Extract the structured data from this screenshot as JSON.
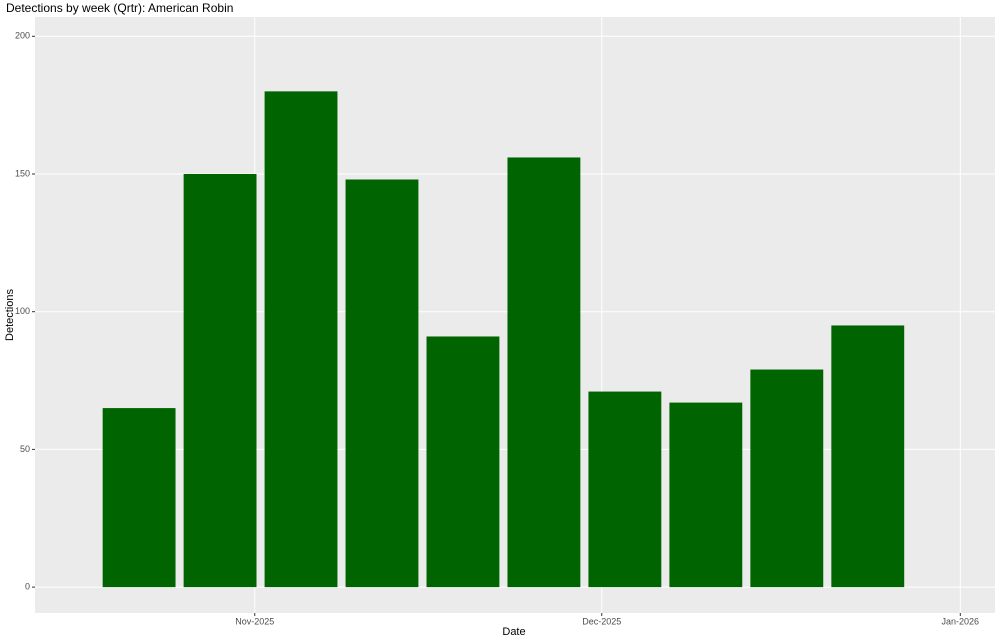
{
  "chart_data": {
    "type": "bar",
    "title": "Detections by week (Qrtr): American Robin",
    "x_label": "Date",
    "y_label": "Detections",
    "x": [
      -10,
      -3,
      4,
      11,
      18,
      25,
      32,
      39,
      46,
      53
    ],
    "values": [
      65,
      150,
      180,
      148,
      91,
      156,
      71,
      67,
      79,
      95
    ],
    "color": "#006400",
    "xlim": [
      -19,
      64
    ],
    "xticks": [
      {
        "value": 0,
        "label": "Nov-2025"
      },
      {
        "value": 30,
        "label": "Dec-2025"
      },
      {
        "value": 61,
        "label": "Jan-2026"
      }
    ],
    "ylim": [
      -9.4,
      207
    ],
    "yticks": [
      0,
      50,
      100,
      150,
      200
    ],
    "grid": true
  }
}
